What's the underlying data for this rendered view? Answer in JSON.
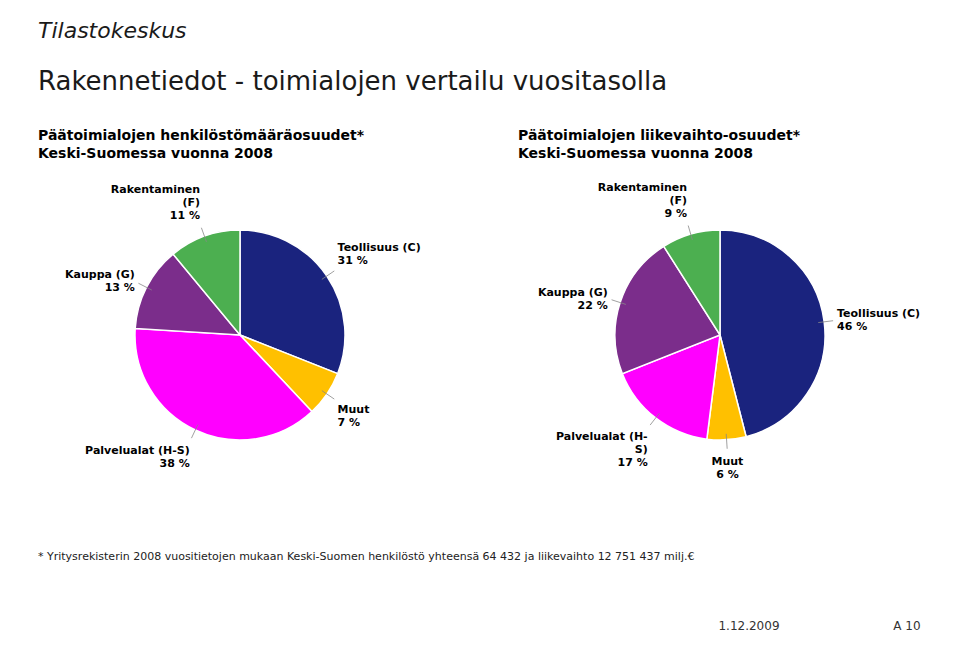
{
  "title": "Rakennetiedot - toimialojen vertailu vuositasolla",
  "annotations": [
    "Tilastokeskus",
    "* Yritysrekisterin 2008 vuositietojen mukaan Keski-Suomen henkilöstö yhteensä 64 432 ja liikevaihto 12 751 437 milj.€",
    "1.12.2009",
    "A 10"
  ],
  "chart_data": [
    {
      "type": "pie",
      "title": "Päätoimialojen henkilöstömääräosuudet*",
      "subtitle": "Keski-Suomessa vuonna 2008",
      "categories": [
        "Teollisuus (C)",
        "Muut",
        "Palvelualat (H-S)",
        "Kauppa (G)",
        "Rakentaminen\n(F)"
      ],
      "values": [
        31,
        7,
        38,
        13,
        11
      ],
      "value_labels": [
        "31 %",
        "7 %",
        "38 %",
        "13 %",
        "11 %"
      ],
      "colors": [
        "#1a237e",
        "#ffc000",
        "#ff00ff",
        "#7b2d8b",
        "#4caf50"
      ],
      "data_labels": true
    },
    {
      "type": "pie",
      "title": "Päätoimialojen liikevaihto-osuudet*",
      "subtitle": "Keski-Suomessa vuonna 2008",
      "categories": [
        "Teollisuus (C)",
        "Muut",
        "Palvelualat (H-\nS)",
        "Kauppa (G)",
        "Rakentaminen\n(F)"
      ],
      "values": [
        46,
        6,
        17,
        22,
        9
      ],
      "value_labels": [
        "46 %",
        "6 %",
        "17 %",
        "22 %",
        "9 %"
      ],
      "colors": [
        "#1a237e",
        "#ffc000",
        "#ff00ff",
        "#7b2d8b",
        "#4caf50"
      ],
      "data_labels": true
    }
  ]
}
